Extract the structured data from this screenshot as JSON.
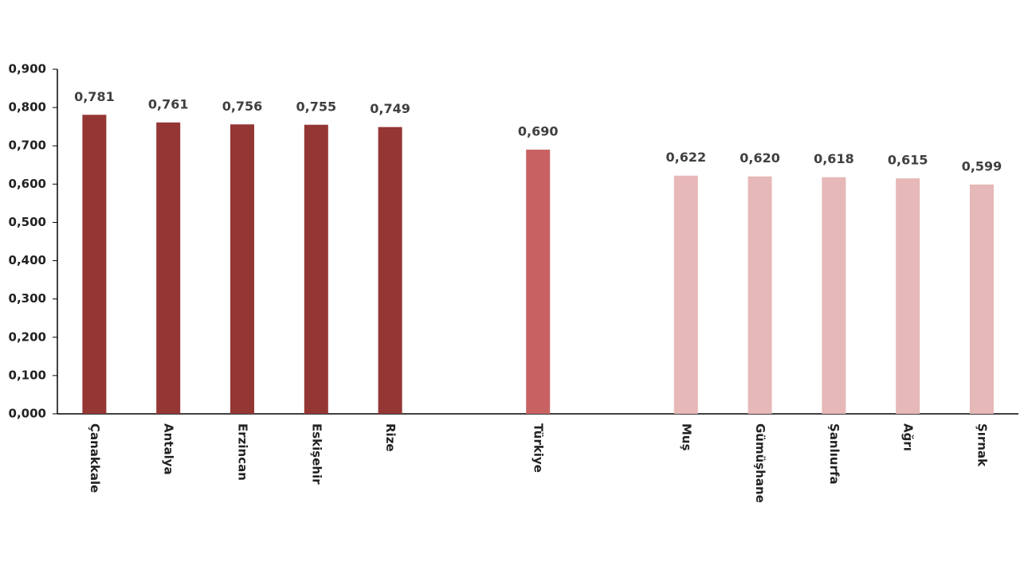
{
  "chart_data": {
    "type": "bar",
    "categories": [
      "Çanakkale",
      "Antalya",
      "Erzincan",
      "Eskişehir",
      "Rize",
      null,
      "Türkiye",
      null,
      "Muş",
      "Gümüşhane",
      "Şanlıurfa",
      "Ağrı",
      "Şırnak"
    ],
    "values": [
      0.781,
      0.761,
      0.756,
      0.755,
      0.749,
      null,
      0.69,
      null,
      0.622,
      0.62,
      0.618,
      0.615,
      0.599
    ],
    "value_labels": [
      "0,781",
      "0,761",
      "0,756",
      "0,755",
      "0,749",
      null,
      "0,690",
      null,
      "0,622",
      "0,620",
      "0,618",
      "0,615",
      "0,599"
    ],
    "colors": [
      "#943634",
      "#943634",
      "#943634",
      "#943634",
      "#943634",
      null,
      "#c86262",
      null,
      "#e6b8b7",
      "#e6b8b7",
      "#e6b8b7",
      "#e6b8b7",
      "#e6b8b7"
    ],
    "ylim": [
      0,
      0.9
    ],
    "yticks": [
      {
        "value": 0,
        "label": "0,000"
      },
      {
        "value": 0.1,
        "label": "0,100"
      },
      {
        "value": 0.2,
        "label": "0,200"
      },
      {
        "value": 0.3,
        "label": "0,300"
      },
      {
        "value": 0.4,
        "label": "0,400"
      },
      {
        "value": 0.5,
        "label": "0,500"
      },
      {
        "value": 0.6,
        "label": "0,600"
      },
      {
        "value": 0.7,
        "label": "0,700"
      },
      {
        "value": 0.8,
        "label": "0,800"
      },
      {
        "value": 0.9,
        "label": "0,900"
      }
    ],
    "grid": false
  }
}
